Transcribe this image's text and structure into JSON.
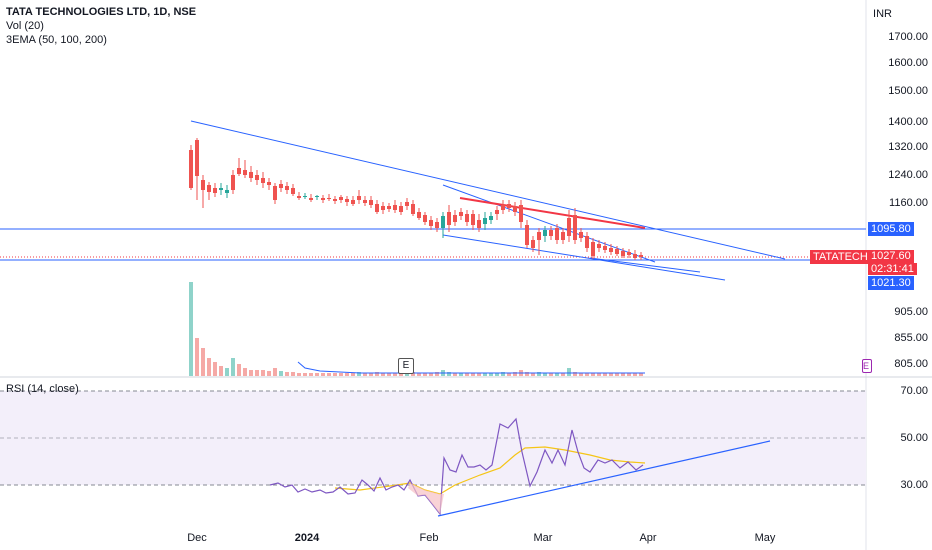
{
  "header": {
    "symbol_title": "TATA TECHNOLOGIES LTD, 1D, NSE",
    "volume_label": "Vol (20)",
    "ema_label": "3EMA (50, 100, 200)"
  },
  "currency": "INR",
  "price_scale": [
    "1700.00",
    "1600.00",
    "1500.00",
    "1400.00",
    "1320.00",
    "1240.00",
    "1160.00",
    "905.00",
    "855.00",
    "805.00"
  ],
  "tags": {
    "level_line": "1095.80",
    "symbol": "TATATECH",
    "last_price": "1027.60",
    "countdown": "02:31:41",
    "lower_level": "1021.30"
  },
  "earnings_badge": "E",
  "rsi": {
    "title": "RSI (14, close)",
    "scale": [
      "70.00",
      "50.00",
      "30.00"
    ]
  },
  "time_axis": [
    "Dec",
    "2024",
    "Feb",
    "Mar",
    "Apr",
    "May"
  ],
  "colors": {
    "up": "#26a69a",
    "down": "#ef5350",
    "trendline": "#2962ff",
    "rsi_line": "#7e57c2",
    "rsi_ma": "#f5c516",
    "rsi_bg": "#f3effa",
    "tag_red": "#f23645",
    "tag_blue": "#2962ff"
  }
}
